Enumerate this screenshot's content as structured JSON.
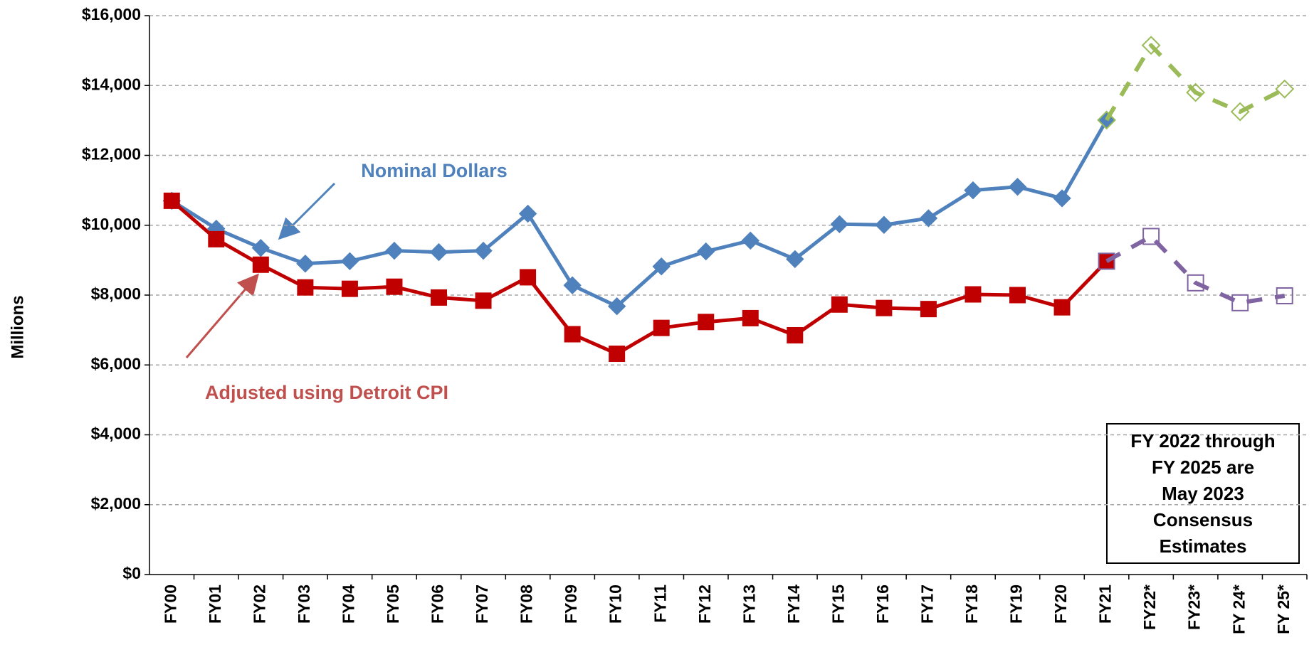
{
  "chart_data": {
    "type": "line",
    "y_label": "Millions",
    "categories": [
      "FY00",
      "FY01",
      "FY02",
      "FY03",
      "FY04",
      "FY05",
      "FY06",
      "FY07",
      "FY08",
      "FY09",
      "FY10",
      "FY11",
      "FY12",
      "FY13",
      "FY14",
      "FY15",
      "FY16",
      "FY17",
      "FY18",
      "FY19",
      "FY20",
      "FY21",
      "FY22*",
      "FY23*",
      "FY 24*",
      "FY 25*"
    ],
    "ylim": [
      0,
      16000
    ],
    "yticks": [
      {
        "value": 0,
        "label": "$0"
      },
      {
        "value": 2000,
        "label": "$2,000"
      },
      {
        "value": 4000,
        "label": "$4,000"
      },
      {
        "value": 6000,
        "label": "$6,000"
      },
      {
        "value": 8000,
        "label": "$8,000"
      },
      {
        "value": 10000,
        "label": "$10,000"
      },
      {
        "value": 12000,
        "label": "$12,000"
      },
      {
        "value": 14000,
        "label": "$14,000"
      },
      {
        "value": 16000,
        "label": "$16,000"
      }
    ],
    "grid": true,
    "series": [
      {
        "color": "#4f81bd",
        "marker": "diamond",
        "filled": true,
        "dashed": false,
        "values": [
          10700,
          9900,
          9350,
          8900,
          8970,
          9270,
          9230,
          9270,
          10330,
          8280,
          7680,
          8820,
          9250,
          9560,
          9030,
          10030,
          10010,
          10200,
          11000,
          11100,
          10770,
          13010,
          null,
          null,
          null,
          null
        ]
      },
      {
        "color": "#9bbb59",
        "marker": "diamond",
        "filled": false,
        "dashed": true,
        "values": [
          null,
          null,
          null,
          null,
          null,
          null,
          null,
          null,
          null,
          null,
          null,
          null,
          null,
          null,
          null,
          null,
          null,
          null,
          null,
          null,
          null,
          13010,
          15150,
          13800,
          13250,
          13900
        ]
      },
      {
        "color": "#c00000",
        "marker": "square",
        "filled": true,
        "dashed": false,
        "values": [
          10700,
          9600,
          8870,
          8220,
          8180,
          8240,
          7930,
          7840,
          8510,
          6880,
          6320,
          7060,
          7230,
          7340,
          6850,
          7730,
          7630,
          7600,
          8020,
          8000,
          7650,
          8970,
          null,
          null,
          null,
          null
        ]
      },
      {
        "color": "#8064a2",
        "marker": "square",
        "filled": false,
        "dashed": true,
        "values": [
          null,
          null,
          null,
          null,
          null,
          null,
          null,
          null,
          null,
          null,
          null,
          null,
          null,
          null,
          null,
          null,
          null,
          null,
          null,
          null,
          null,
          8970,
          9680,
          8350,
          7780,
          7980
        ]
      }
    ],
    "annotations": [
      {
        "text": "Nominal Dollars",
        "color": "#4f81bd"
      },
      {
        "text": "Adjusted using Detroit CPI",
        "color": "#c0504d"
      }
    ],
    "note_lines": [
      "FY 2022 through",
      "FY 2025 are",
      "May 2023",
      "Consensus",
      "Estimates"
    ]
  }
}
